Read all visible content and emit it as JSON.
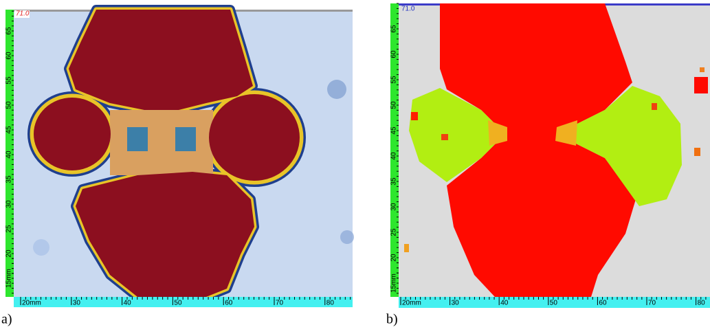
{
  "panels": [
    {
      "caption": "a)",
      "value_label": "71.0",
      "x_ruler": [
        "20mm",
        "30",
        "40",
        "50",
        "60",
        "70",
        "80"
      ],
      "y_ruler": [
        "15mm",
        "20",
        "25",
        "30",
        "35",
        "40",
        "45",
        "50",
        "55",
        "60",
        "65"
      ]
    },
    {
      "caption": "b)",
      "value_label": "71.0",
      "x_ruler": [
        "20mm",
        "30",
        "40",
        "50",
        "60",
        "70",
        "80"
      ],
      "y_ruler": [
        "15mm",
        "20",
        "25",
        "30",
        "35",
        "40",
        "45",
        "50",
        "55",
        "60",
        "65"
      ]
    }
  ]
}
